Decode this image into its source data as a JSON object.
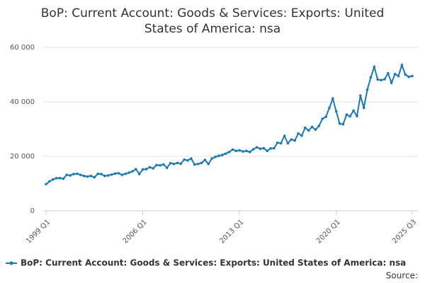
{
  "chart_data": {
    "type": "line",
    "title": [
      "BoP: Current Account: Goods & Services: Exports: United",
      "States of America: nsa"
    ],
    "categories": [
      "1999 Q1",
      null,
      null,
      null,
      null,
      null,
      null,
      null,
      null,
      null,
      null,
      null,
      null,
      null,
      null,
      null,
      null,
      null,
      null,
      null,
      null,
      null,
      null,
      null,
      null,
      null,
      null,
      null,
      "2006 Q1",
      null,
      null,
      null,
      null,
      null,
      null,
      null,
      null,
      null,
      null,
      null,
      null,
      null,
      null,
      null,
      null,
      null,
      null,
      null,
      null,
      null,
      null,
      null,
      null,
      null,
      null,
      null,
      "2013 Q1",
      null,
      null,
      null,
      null,
      null,
      null,
      null,
      null,
      null,
      null,
      null,
      null,
      null,
      null,
      null,
      null,
      null,
      null,
      null,
      null,
      null,
      null,
      null,
      null,
      null,
      null,
      null,
      "2020 Q1",
      null,
      null,
      null,
      null,
      null,
      null,
      null,
      null,
      null,
      null,
      null,
      null,
      null,
      null,
      null,
      null,
      null,
      null,
      null,
      null,
      null,
      "2025 Q3"
    ],
    "series": [
      {
        "name": "BoP: Current Account: Goods & Services: Exports: United States of America: nsa",
        "color": "#1a7ab6",
        "values": [
          9800,
          10800,
          11500,
          12000,
          12000,
          11800,
          13200,
          13000,
          13500,
          13600,
          13200,
          12800,
          12600,
          12800,
          12300,
          13600,
          13500,
          12800,
          13000,
          13300,
          13700,
          13800,
          13200,
          13600,
          14000,
          14500,
          15300,
          13500,
          15200,
          15300,
          16000,
          15600,
          16800,
          16700,
          17000,
          15800,
          17500,
          17200,
          17600,
          17300,
          18800,
          18500,
          19200,
          17000,
          17200,
          17600,
          18700,
          17200,
          19200,
          19800,
          20200,
          20500,
          21000,
          21600,
          22500,
          22000,
          22200,
          21800,
          22000,
          21600,
          22600,
          23300,
          22800,
          23000,
          22000,
          22900,
          23000,
          25000,
          24800,
          27500,
          24800,
          26200,
          25800,
          28400,
          27600,
          30500,
          29500,
          30800,
          29800,
          31200,
          33800,
          34500,
          37800,
          41200,
          36500,
          32000,
          31800,
          35300,
          34700,
          36800,
          34800,
          42300,
          37800,
          44500,
          49000,
          52800,
          48200,
          48000,
          48300,
          50500,
          47000,
          50200,
          49500,
          53500,
          50000,
          49200,
          49500
        ]
      }
    ],
    "ylim": [
      0,
      60000
    ],
    "yticks": [
      0,
      {
        "value": 20000,
        "label": "20 000"
      },
      {
        "value": 40000,
        "label": "40 000"
      },
      {
        "value": 60000,
        "label": "60 000"
      }
    ],
    "grid": true,
    "source_label": "Source:"
  }
}
